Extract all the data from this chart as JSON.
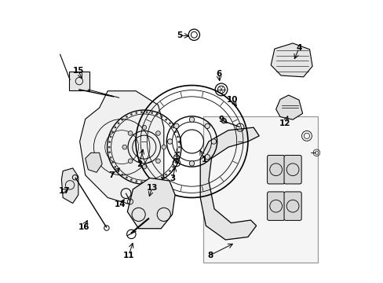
{
  "title": "",
  "background_color": "#ffffff",
  "border_color": "#000000",
  "line_color": "#000000",
  "text_color": "#000000",
  "figsize": [
    4.89,
    3.6
  ],
  "dpi": 100
}
